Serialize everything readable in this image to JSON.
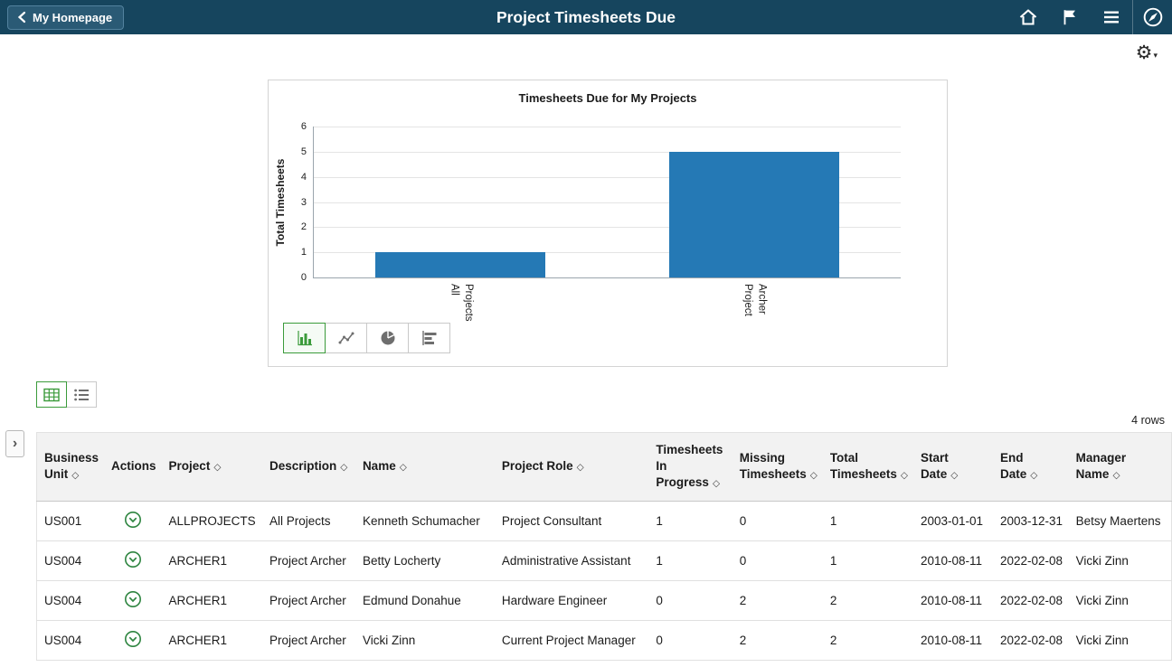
{
  "header": {
    "back_label": "My Homepage",
    "title": "Project Timesheets Due",
    "icons": [
      "home-icon",
      "flag-icon",
      "hamburger-menu-icon",
      "navbar-compass-icon"
    ]
  },
  "colors": {
    "topbar": "#16455e",
    "accent_green": "#3b9b3b",
    "bar_color": "#2579b5"
  },
  "settings_gear": {
    "icon": "gear-icon"
  },
  "chart_data": {
    "type": "bar",
    "title": "Timesheets Due for My Projects",
    "categories": [
      "All Projects",
      "Project Archer"
    ],
    "values": [
      1,
      5
    ],
    "xlabel": "",
    "ylabel": "Total Timesheets",
    "ylim": [
      0,
      6
    ],
    "yticks": [
      0,
      1,
      2,
      3,
      4,
      5,
      6
    ],
    "bar_color": "#2579b5",
    "grid": true,
    "legend": "none",
    "type_options": [
      "vertical-bar",
      "line",
      "pie",
      "horizontal-bar"
    ],
    "selected_type": "vertical-bar"
  },
  "toolbar": {
    "view_options": [
      "grid-view",
      "list-view"
    ],
    "selected_view": "grid-view",
    "row_count": "4 rows"
  },
  "table": {
    "columns": [
      {
        "key": "business_unit",
        "label": "Business Unit",
        "sortable": true
      },
      {
        "key": "actions",
        "label": "Actions",
        "sortable": false
      },
      {
        "key": "project",
        "label": "Project",
        "sortable": true
      },
      {
        "key": "description",
        "label": "Description",
        "sortable": true
      },
      {
        "key": "name",
        "label": "Name",
        "sortable": true
      },
      {
        "key": "project_role",
        "label": "Project Role",
        "sortable": true
      },
      {
        "key": "timesheets_in_progress",
        "label": "Timesheets In Progress",
        "sortable": true
      },
      {
        "key": "missing_timesheets",
        "label": "Missing Timesheets",
        "sortable": true
      },
      {
        "key": "total_timesheets",
        "label": "Total Timesheets",
        "sortable": true
      },
      {
        "key": "start_date",
        "label": "Start Date",
        "sortable": true
      },
      {
        "key": "end_date",
        "label": "End Date",
        "sortable": true
      },
      {
        "key": "manager_name",
        "label": "Manager Name",
        "sortable": true
      }
    ],
    "rows": [
      {
        "business_unit": "US001",
        "project": "ALLPROJECTS",
        "description": "All Projects",
        "name": "Kenneth Schumacher",
        "project_role": "Project Consultant",
        "timesheets_in_progress": "1",
        "missing_timesheets": "0",
        "total_timesheets": "1",
        "start_date": "2003-01-01",
        "end_date": "2003-12-31",
        "manager_name": "Betsy Maertens"
      },
      {
        "business_unit": "US004",
        "project": "ARCHER1",
        "description": "Project Archer",
        "name": "Betty Locherty",
        "project_role": "Administrative Assistant",
        "timesheets_in_progress": "1",
        "missing_timesheets": "0",
        "total_timesheets": "1",
        "start_date": "2010-08-11",
        "end_date": "2022-02-08",
        "manager_name": "Vicki Zinn"
      },
      {
        "business_unit": "US004",
        "project": "ARCHER1",
        "description": "Project Archer",
        "name": "Edmund Donahue",
        "project_role": "Hardware Engineer",
        "timesheets_in_progress": "0",
        "missing_timesheets": "2",
        "total_timesheets": "2",
        "start_date": "2010-08-11",
        "end_date": "2022-02-08",
        "manager_name": "Vicki Zinn"
      },
      {
        "business_unit": "US004",
        "project": "ARCHER1",
        "description": "Project Archer",
        "name": "Vicki Zinn",
        "project_role": "Current Project Manager",
        "timesheets_in_progress": "0",
        "missing_timesheets": "2",
        "total_timesheets": "2",
        "start_date": "2010-08-11",
        "end_date": "2022-02-08",
        "manager_name": "Vicki Zinn"
      }
    ]
  }
}
